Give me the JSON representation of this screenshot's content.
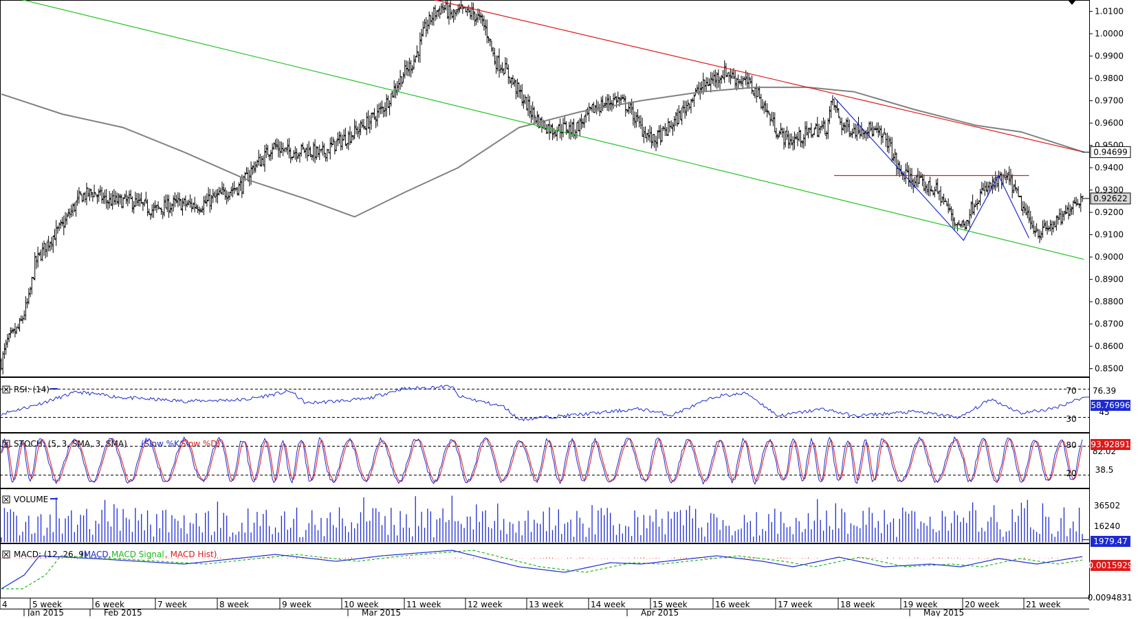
{
  "chart_data": [
    {
      "type": "candlestick",
      "panel": "price",
      "y_ticks": [
        "1.0100",
        "1.0000",
        "0.9900",
        "0.9800",
        "0.9700",
        "0.9600",
        "0.9500",
        "0.9400",
        "0.9300",
        "0.9200",
        "0.9100",
        "0.9000",
        "0.8900",
        "0.8800",
        "0.8700",
        "0.8600",
        "0.8500"
      ],
      "ylim": [
        0.8465,
        1.0145
      ],
      "price_path": [
        [
          0,
          0.853
        ],
        [
          4,
          0.862
        ],
        [
          12,
          0.869
        ],
        [
          18,
          0.881
        ],
        [
          22,
          0.897
        ],
        [
          30,
          0.906
        ],
        [
          40,
          0.914
        ],
        [
          52,
          0.927
        ],
        [
          60,
          0.929
        ],
        [
          70,
          0.925
        ],
        [
          85,
          0.925
        ],
        [
          100,
          0.921
        ],
        [
          115,
          0.924
        ],
        [
          130,
          0.923
        ],
        [
          142,
          0.927
        ],
        [
          150,
          0.93
        ],
        [
          158,
          0.932
        ],
        [
          166,
          0.941
        ],
        [
          172,
          0.944
        ],
        [
          178,
          0.95
        ],
        [
          188,
          0.947
        ],
        [
          200,
          0.948
        ],
        [
          210,
          0.946
        ],
        [
          220,
          0.951
        ],
        [
          228,
          0.954
        ],
        [
          236,
          0.958
        ],
        [
          244,
          0.962
        ],
        [
          252,
          0.968
        ],
        [
          258,
          0.975
        ],
        [
          264,
          0.982
        ],
        [
          270,
          0.987
        ],
        [
          274,
          0.993
        ],
        [
          278,
          1.002
        ],
        [
          284,
          1.009
        ],
        [
          290,
          1.012
        ],
        [
          296,
          1.008
        ],
        [
          302,
          1.01
        ],
        [
          310,
          1.009
        ],
        [
          316,
          1.005
        ],
        [
          320,
          0.999
        ],
        [
          324,
          0.988
        ],
        [
          330,
          0.985
        ],
        [
          338,
          0.976
        ],
        [
          346,
          0.967
        ],
        [
          354,
          0.96
        ],
        [
          362,
          0.957
        ],
        [
          370,
          0.958
        ],
        [
          376,
          0.957
        ],
        [
          382,
          0.961
        ],
        [
          390,
          0.967
        ],
        [
          398,
          0.969
        ],
        [
          404,
          0.971
        ],
        [
          412,
          0.967
        ],
        [
          420,
          0.958
        ],
        [
          428,
          0.952
        ],
        [
          436,
          0.956
        ],
        [
          444,
          0.962
        ],
        [
          452,
          0.97
        ],
        [
          460,
          0.976
        ],
        [
          468,
          0.98
        ],
        [
          476,
          0.983
        ],
        [
          482,
          0.98
        ],
        [
          490,
          0.978
        ],
        [
          496,
          0.974
        ],
        [
          502,
          0.966
        ],
        [
          510,
          0.956
        ],
        [
          518,
          0.952
        ],
        [
          526,
          0.954
        ],
        [
          534,
          0.957
        ],
        [
          542,
          0.958
        ],
        [
          546,
          0.97
        ],
        [
          552,
          0.959
        ],
        [
          560,
          0.957
        ],
        [
          568,
          0.958
        ],
        [
          576,
          0.955
        ],
        [
          582,
          0.952
        ],
        [
          590,
          0.938
        ],
        [
          598,
          0.935
        ],
        [
          606,
          0.932
        ],
        [
          614,
          0.93
        ],
        [
          620,
          0.924
        ],
        [
          626,
          0.916
        ],
        [
          632,
          0.914
        ],
        [
          640,
          0.926
        ],
        [
          648,
          0.931
        ],
        [
          656,
          0.934
        ],
        [
          662,
          0.935
        ],
        [
          668,
          0.926
        ],
        [
          676,
          0.915
        ],
        [
          682,
          0.911
        ],
        [
          690,
          0.914
        ],
        [
          698,
          0.918
        ],
        [
          704,
          0.925
        ],
        [
          710,
          0.926
        ]
      ],
      "candle_count": 711,
      "ma_200": [
        [
          0,
          0.973
        ],
        [
          40,
          0.964
        ],
        [
          80,
          0.958
        ],
        [
          120,
          0.947
        ],
        [
          160,
          0.935
        ],
        [
          200,
          0.926
        ],
        [
          232,
          0.918
        ],
        [
          265,
          0.929
        ],
        [
          300,
          0.94
        ],
        [
          340,
          0.958
        ],
        [
          380,
          0.965
        ],
        [
          420,
          0.97
        ],
        [
          460,
          0.974
        ],
        [
          495,
          0.976
        ],
        [
          530,
          0.976
        ],
        [
          560,
          0.974
        ],
        [
          600,
          0.966
        ],
        [
          640,
          0.959
        ],
        [
          670,
          0.956
        ],
        [
          711,
          0.947
        ]
      ],
      "trend_support": [
        [
          0,
          1.0175
        ],
        [
          711,
          0.899
        ]
      ],
      "trend_resistance": [
        [
          270,
          1.0175
        ],
        [
          711,
          0.947
        ]
      ],
      "neckline": {
        "value": 0.9365,
        "from": 547,
        "to": 675
      },
      "pattern_zigzag": [
        [
          547,
          0.9715
        ],
        [
          632,
          0.9075
        ],
        [
          655,
          0.9365
        ],
        [
          675,
          0.9085
        ]
      ],
      "price_labels": {
        "ma": "0.94699",
        "last": "0.92622"
      },
      "ma_value": 0.94699,
      "last_value": 0.92622
    },
    {
      "type": "line",
      "panel": "rsi",
      "label": "RSI: (14)",
      "tick_labels": [
        "70",
        "76.39",
        "45",
        "30"
      ],
      "levels": [
        70,
        30
      ],
      "ylim": [
        10,
        85
      ],
      "series_color": "#1c2ad0",
      "value_label": "58.76996",
      "path": [
        [
          0,
          35
        ],
        [
          20,
          46
        ],
        [
          50,
          66
        ],
        [
          80,
          58
        ],
        [
          120,
          53
        ],
        [
          160,
          55
        ],
        [
          190,
          67
        ],
        [
          200,
          50
        ],
        [
          240,
          56
        ],
        [
          262,
          70
        ],
        [
          296,
          74
        ],
        [
          300,
          60
        ],
        [
          330,
          45
        ],
        [
          340,
          27
        ],
        [
          380,
          34
        ],
        [
          420,
          42
        ],
        [
          440,
          33
        ],
        [
          470,
          60
        ],
        [
          490,
          64
        ],
        [
          510,
          32
        ],
        [
          540,
          42
        ],
        [
          560,
          32
        ],
        [
          600,
          38
        ],
        [
          630,
          30
        ],
        [
          650,
          56
        ],
        [
          670,
          36
        ],
        [
          690,
          42
        ],
        [
          711,
          58.8
        ]
      ]
    },
    {
      "type": "line",
      "panel": "stoch",
      "label": "STOCH: (5, 3, SMA, 3, SMA)",
      "legend": [
        {
          "name": "Slow %K",
          "color": "#1c2ad0"
        },
        {
          "name": "Slow %D",
          "color": "#e01818"
        }
      ],
      "tick_labels": [
        "80",
        "82.02",
        "38.5",
        "20"
      ],
      "levels": [
        80,
        20
      ],
      "ylim": [
        -5,
        105
      ],
      "value_label": "93.92891"
    },
    {
      "type": "bar",
      "panel": "volume",
      "label": "VOLUME",
      "tick_labels": [
        "36502",
        "16240"
      ],
      "ylim": [
        0,
        45000
      ],
      "series_color": "#1c2ad0",
      "value_label": "1979.47"
    },
    {
      "type": "line",
      "panel": "macd",
      "label": "MACD: (12, 26, 9)",
      "legend": [
        {
          "name": "MACD",
          "color": "#1c2ad0"
        },
        {
          "name": "MACD Signal",
          "color": "#19b919"
        },
        {
          "name": "MACD Hist",
          "color": "#e01818"
        }
      ],
      "tick_labels": [
        "0.0015929",
        "-0.0094831"
      ],
      "ylim": [
        -0.028,
        0.01
      ],
      "value_label": "0.0015929",
      "path": [
        [
          0,
          -0.022
        ],
        [
          15,
          -0.012
        ],
        [
          25,
          0.002
        ],
        [
          60,
          0.0
        ],
        [
          120,
          -0.004
        ],
        [
          180,
          0.003
        ],
        [
          220,
          -0.002
        ],
        [
          250,
          0.002
        ],
        [
          296,
          0.006
        ],
        [
          340,
          -0.006
        ],
        [
          370,
          -0.01
        ],
        [
          400,
          -0.003
        ],
        [
          420,
          -0.004
        ],
        [
          470,
          0.002
        ],
        [
          500,
          -0.002
        ],
        [
          520,
          -0.006
        ],
        [
          550,
          0.001
        ],
        [
          580,
          -0.006
        ],
        [
          610,
          -0.004
        ],
        [
          630,
          -0.006
        ],
        [
          655,
          0.0
        ],
        [
          680,
          -0.004
        ],
        [
          711,
          0.0016
        ]
      ]
    }
  ],
  "x_axis": {
    "week_labels": [
      "4",
      "5 week",
      "6 week",
      "7 week",
      "8 week",
      "9 week",
      "10 week",
      "11 week",
      "12 week",
      "13 week",
      "14 week",
      "15 week",
      "16 week",
      "17 week",
      "18 week",
      "19 week",
      "20 week",
      "21 week"
    ],
    "month_labels": [
      "Jan 2015",
      "Feb 2015",
      "Mar 2015",
      "Apr 2015",
      "May 2015"
    ]
  },
  "colors": {
    "candles": "#000000",
    "ma_line": "#808080",
    "support_line": "#22c322",
    "resistance_line": "#e01818",
    "pattern_line": "#1c2ad0",
    "value_box_red": "#e01818",
    "value_box_blue": "#1c2ad0"
  }
}
